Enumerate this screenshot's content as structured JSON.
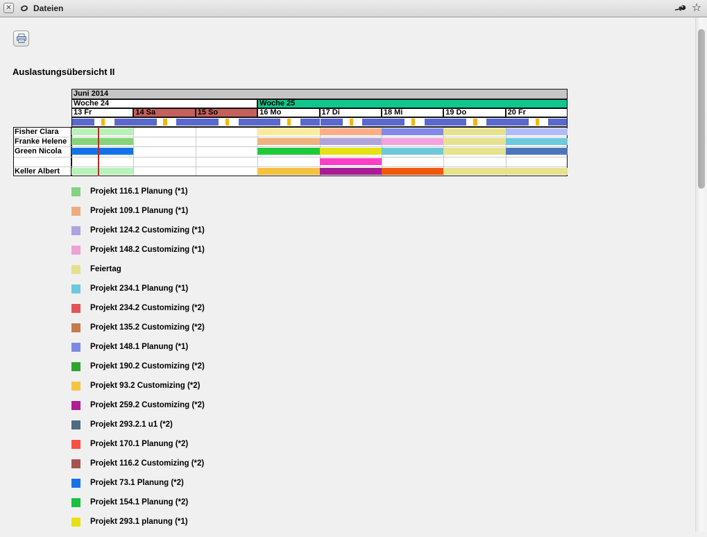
{
  "topbar": {
    "title": "Dateien"
  },
  "icons": {
    "close": "close-window",
    "refresh": "refresh-sync",
    "pin": "pushpin",
    "star": "favorite-star",
    "print": "printer"
  },
  "page": {
    "title": "Auslastungsübersicht II"
  },
  "chart_data": {
    "type": "gantt-schedule",
    "title": "Auslastungsübersicht II",
    "month_label": "Juni 2014",
    "weeks": [
      {
        "label": "Woche 24",
        "days": 3,
        "bg": "#FFFFFF"
      },
      {
        "label": "Woche 25",
        "days": 5,
        "bg": "#10C68D"
      }
    ],
    "days": [
      {
        "label": "13 Fr",
        "weekend": false
      },
      {
        "label": "14 Sa",
        "weekend": true
      },
      {
        "label": "15 So",
        "weekend": true
      },
      {
        "label": "16 Mo",
        "weekend": false
      },
      {
        "label": "17 Di",
        "weekend": false
      },
      {
        "label": "18 Mi",
        "weekend": false
      },
      {
        "label": "19 Do",
        "weekend": false
      },
      {
        "label": "20 Fr",
        "weekend": false
      }
    ],
    "colors": {
      "month_bg": "#C6C6C6",
      "weekend_bg": "#C4605C",
      "hours_bar": "#5A69CE",
      "hours_tick": "#F6B50F",
      "now_line": "#B03024",
      "grid": "#C9C9C9",
      "border": "#111111"
    },
    "now_marker": {
      "day_index": 0,
      "fraction": 0.43
    },
    "rows": [
      {
        "name": "Fisher Clara",
        "bars": [
          {
            "day": 0,
            "span": 1,
            "color": "#B9F2B9"
          },
          {
            "day": 3,
            "span": 1,
            "color": "#FBEC9D"
          },
          {
            "day": 4,
            "span": 1,
            "color": "#FBAE87"
          },
          {
            "day": 5,
            "span": 1,
            "color": "#8289E8"
          },
          {
            "day": 6,
            "span": 1,
            "color": "#E6E28E"
          },
          {
            "day": 7,
            "span": 1,
            "color": "#B0BCF8"
          }
        ]
      },
      {
        "name": "Franke Helene",
        "bars": [
          {
            "day": 0,
            "span": 1,
            "color": "#85D478"
          },
          {
            "day": 3,
            "span": 1,
            "color": "#EFB27E"
          },
          {
            "day": 4,
            "span": 1,
            "color": "#B0A4DC"
          },
          {
            "day": 5,
            "span": 1,
            "color": "#F2A3DC"
          },
          {
            "day": 6,
            "span": 1,
            "color": "#E6E28E"
          },
          {
            "day": 7,
            "span": 1,
            "color": "#6EC9DE"
          }
        ]
      },
      {
        "name": "Green Nicola",
        "bars": [
          {
            "day": 0,
            "span": 1,
            "color": "#1273E8"
          },
          {
            "day": 3,
            "span": 1,
            "color": "#1DC93B"
          },
          {
            "day": 4,
            "span": 1,
            "color": "#E5E112"
          },
          {
            "day": 5,
            "span": 1,
            "color": "#6FC8DC"
          },
          {
            "day": 6,
            "span": 1,
            "color": "#E6E28E"
          },
          {
            "day": 7,
            "span": 1,
            "color": "#4B76BC"
          }
        ]
      },
      {
        "name": "",
        "bars": [
          {
            "day": 4,
            "span": 1,
            "color": "#FA3FC8"
          }
        ]
      },
      {
        "name": "Keller Albert",
        "bars": [
          {
            "day": 0,
            "span": 1,
            "color": "#B9F2B9"
          },
          {
            "day": 3,
            "span": 1,
            "color": "#F5C23B"
          },
          {
            "day": 4,
            "span": 1,
            "color": "#A81C96"
          },
          {
            "day": 5,
            "span": 1,
            "color": "#F25708"
          },
          {
            "day": 6,
            "span": 2,
            "color": "#E6E28E"
          }
        ]
      }
    ]
  },
  "legend": [
    {
      "label": "Projekt 116.1 Planung (*1)",
      "color": "#82D382"
    },
    {
      "label": "Projekt 109.1 Planung (*1)",
      "color": "#EBAD7E"
    },
    {
      "label": "Projekt 124.2 Customizing (*1)",
      "color": "#AFA3DF"
    },
    {
      "label": "Projekt 148.2 Customizing (*1)",
      "color": "#F0A0D8"
    },
    {
      "label": "Feiertag",
      "color": "#E6E08C"
    },
    {
      "label": "Projekt 234.1 Planung (*1)",
      "color": "#6CC8DC"
    },
    {
      "label": "Projekt 234.2 Customizing (*2)",
      "color": "#E35555"
    },
    {
      "label": "Projekt 135.2 Customizing (*2)",
      "color": "#C8794A"
    },
    {
      "label": "Projekt 148.1 Planung (*1)",
      "color": "#7B8BE3"
    },
    {
      "label": "Projekt 190.2 Customizing (*2)",
      "color": "#2FA52F"
    },
    {
      "label": "Projekt 93.2 Customizing (*2)",
      "color": "#F5C53E"
    },
    {
      "label": "Projekt 259.2 Customizing (*2)",
      "color": "#B01F93"
    },
    {
      "label": "Projekt 293.2.1 u1 (*2)",
      "color": "#4E6C82"
    },
    {
      "label": "Projekt 170.1 Planung (*2)",
      "color": "#FA4F43"
    },
    {
      "label": "Projekt 116.2 Customizing (*2)",
      "color": "#A65353"
    },
    {
      "label": "Projekt 73.1 Planung (*2)",
      "color": "#1273E8"
    },
    {
      "label": "Projekt 154.1 Planung (*2)",
      "color": "#17C23E"
    },
    {
      "label": "Projekt 293.1 planung (*1)",
      "color": "#E8E112"
    }
  ]
}
